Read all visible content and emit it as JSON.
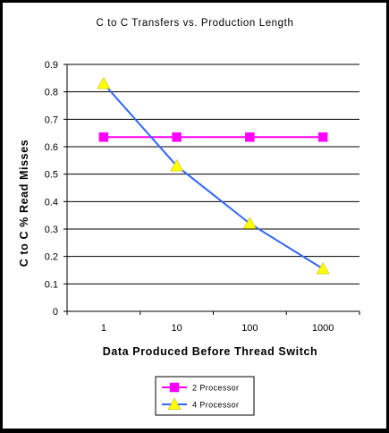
{
  "chart_data": {
    "type": "line",
    "title": "C to C Transfers vs. Production Length",
    "xlabel": "Data Produced Before Thread Switch",
    "ylabel": "C to C % Read Misses",
    "x_scale": "log",
    "x": [
      1,
      10,
      100,
      1000
    ],
    "x_tick_labels": [
      "1",
      "10",
      "100",
      "1000"
    ],
    "ylim": [
      0,
      0.9
    ],
    "y_ticks": [
      0,
      0.1,
      0.2,
      0.3,
      0.4,
      0.5,
      0.6,
      0.7,
      0.8,
      0.9
    ],
    "y_tick_labels": [
      "0",
      "0.1",
      "0.2",
      "0.3",
      "0.4",
      "0.5",
      "0.6",
      "0.7",
      "0.8",
      "0.9"
    ],
    "grid": "horizontal",
    "legend_position": "bottom-center",
    "series": [
      {
        "name": "2 Processor",
        "values": [
          0.635,
          0.635,
          0.635,
          0.635
        ],
        "color": "#ff00ff",
        "marker": "square"
      },
      {
        "name": "4 Processor",
        "values": [
          0.83,
          0.53,
          0.32,
          0.155
        ],
        "color": "#3366ff",
        "marker": "triangle",
        "marker_color": "#ffff00"
      }
    ]
  }
}
